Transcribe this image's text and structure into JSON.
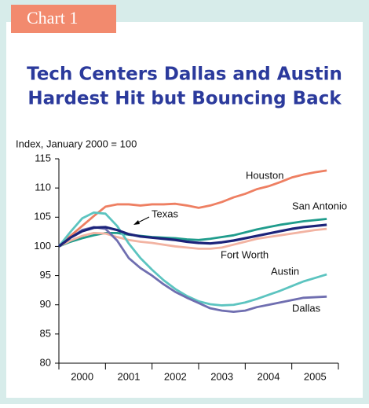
{
  "chart_data": {
    "type": "line",
    "badge": "Chart 1",
    "title": [
      "Tech Centers Dallas and Austin",
      "Hardest Hit but Bouncing Back"
    ],
    "y_label": "Index, January 2000 = 100",
    "x": [
      2000,
      2000.25,
      2000.5,
      2000.75,
      2001,
      2001.25,
      2001.5,
      2001.75,
      2002,
      2002.25,
      2002.5,
      2002.75,
      2003,
      2003.25,
      2003.5,
      2003.75,
      2004,
      2004.25,
      2004.5,
      2004.75,
      2005,
      2005.25,
      2005.5,
      2005.75
    ],
    "xlim": [
      2000,
      2006
    ],
    "xticks": [
      2000,
      2001,
      2002,
      2003,
      2004,
      2005,
      2006
    ],
    "categories": [
      "2000",
      "2001",
      "2002",
      "2003",
      "2004",
      "2005"
    ],
    "ylim": [
      80,
      115
    ],
    "yticks": [
      80,
      85,
      90,
      95,
      100,
      105,
      110,
      115
    ],
    "series": [
      {
        "name": "Houston",
        "color": "#ee7f62",
        "values": [
          100,
          101.8,
          103.5,
          105.2,
          106.8,
          107.2,
          107.2,
          107.0,
          107.2,
          107.2,
          107.3,
          107.0,
          106.6,
          107.0,
          107.6,
          108.4,
          109.0,
          109.8,
          110.3,
          111.0,
          111.8,
          112.3,
          112.7,
          113.0
        ]
      },
      {
        "name": "San Antonio",
        "color": "#1f9c8c",
        "values": [
          100,
          100.8,
          101.4,
          101.9,
          102.3,
          102.3,
          102.0,
          101.8,
          101.6,
          101.5,
          101.4,
          101.2,
          101.1,
          101.3,
          101.6,
          101.9,
          102.4,
          102.9,
          103.3,
          103.7,
          104.0,
          104.3,
          104.5,
          104.7
        ]
      },
      {
        "name": "Fort Worth",
        "color": "#f2b3a2",
        "values": [
          100,
          101.0,
          101.8,
          102.3,
          102.2,
          101.6,
          101.1,
          100.8,
          100.6,
          100.3,
          100.0,
          99.8,
          99.6,
          99.6,
          99.8,
          100.3,
          100.8,
          101.3,
          101.6,
          101.9,
          102.2,
          102.5,
          102.8,
          103.0
        ]
      },
      {
        "name": "Austin",
        "color": "#5cc4c0",
        "values": [
          100,
          102.5,
          104.8,
          105.8,
          105.6,
          103.5,
          100.5,
          98.0,
          96.0,
          94.2,
          92.7,
          91.5,
          90.6,
          90.1,
          89.9,
          90.0,
          90.4,
          91.0,
          91.7,
          92.4,
          93.2,
          94.0,
          94.6,
          95.2
        ]
      },
      {
        "name": "Dallas",
        "color": "#6f6eb0",
        "values": [
          100,
          101.5,
          102.8,
          103.3,
          103.0,
          101.0,
          98.0,
          96.3,
          95.0,
          93.5,
          92.2,
          91.2,
          90.3,
          89.4,
          89.0,
          88.8,
          89.0,
          89.6,
          90.0,
          90.4,
          90.8,
          91.2,
          91.3,
          91.4
        ]
      },
      {
        "name": "Texas",
        "color": "#1c237a",
        "values": [
          100,
          101.5,
          102.6,
          103.2,
          103.3,
          102.8,
          102.1,
          101.7,
          101.5,
          101.3,
          101.1,
          100.8,
          100.6,
          100.5,
          100.7,
          101.0,
          101.4,
          101.8,
          102.2,
          102.6,
          103.0,
          103.3,
          103.5,
          103.7
        ]
      }
    ]
  }
}
